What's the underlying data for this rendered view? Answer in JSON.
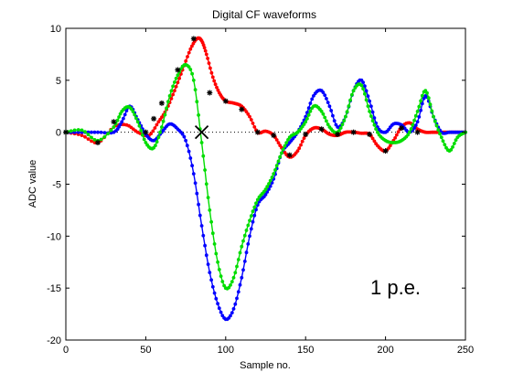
{
  "chart_data": {
    "type": "line",
    "title": "Digital CF waveforms",
    "xlabel": "Sample no.",
    "ylabel": "ADC value",
    "xlim": [
      0,
      250
    ],
    "ylim": [
      -20,
      10
    ],
    "xticks": [
      0,
      50,
      100,
      150,
      200,
      250
    ],
    "yticks": [
      -20,
      -15,
      -10,
      -5,
      0,
      5,
      10
    ],
    "xtick_labels": [
      "0",
      "50",
      "100",
      "150",
      "200",
      "250"
    ],
    "ytick_labels": [
      "-20",
      "-15",
      "-10",
      "-5",
      "0",
      "5",
      "10"
    ],
    "grid": false,
    "annotation": "1 p.e.",
    "baseline_y": 0,
    "crossing_point": [
      85,
      0
    ],
    "series": [
      {
        "color": "#ff0000",
        "marker": "dot-line",
        "x": [
          0,
          10,
          20,
          30,
          38,
          45,
          52,
          58,
          63,
          68,
          73,
          78,
          82,
          85,
          88,
          92,
          96,
          100,
          105,
          110,
          115,
          120,
          125,
          130,
          135,
          140,
          145,
          150,
          155,
          160,
          165,
          170,
          175,
          180,
          185,
          190,
          195,
          200,
          205,
          210,
          215,
          220,
          225,
          230,
          235,
          240,
          245,
          250
        ],
        "y": [
          0,
          -0.3,
          -1,
          0.5,
          0.7,
          0,
          -0.3,
          1,
          2.2,
          4,
          6,
          8,
          9,
          8.8,
          7.5,
          5.3,
          3.8,
          3,
          2.8,
          2.5,
          1.5,
          0,
          0.1,
          -0.3,
          -1.5,
          -2.4,
          -1.8,
          -0.3,
          0.4,
          0.3,
          -0.2,
          -0.3,
          0,
          0,
          -0.1,
          -0.2,
          -1.3,
          -1.8,
          -0.8,
          0.5,
          0.9,
          0.3,
          0,
          0,
          0,
          0,
          0,
          0
        ]
      },
      {
        "color": "#0000ff",
        "marker": "dot-line",
        "x": [
          0,
          10,
          20,
          30,
          35,
          40,
          45,
          50,
          55,
          60,
          65,
          70,
          75,
          80,
          85,
          90,
          95,
          100,
          105,
          110,
          115,
          120,
          125,
          130,
          135,
          140,
          145,
          150,
          155,
          160,
          165,
          170,
          175,
          180,
          185,
          190,
          195,
          200,
          205,
          210,
          215,
          220,
          225,
          230,
          235,
          240,
          245,
          250
        ],
        "y": [
          0,
          0,
          0,
          0,
          1,
          2.5,
          1.2,
          -0.2,
          -0.8,
          0,
          0.8,
          0.3,
          -0.8,
          -4,
          -9,
          -13.5,
          -16.5,
          -18,
          -17,
          -14,
          -10,
          -7,
          -6,
          -4.5,
          -2,
          -1,
          0,
          1.5,
          3.5,
          4,
          2.5,
          0.5,
          1.5,
          4,
          5,
          3,
          0.5,
          0,
          0.8,
          0.7,
          0,
          1,
          3.5,
          1.5,
          0,
          0,
          0,
          0
        ]
      },
      {
        "color": "#00dd00",
        "marker": "dot-line",
        "x": [
          0,
          10,
          20,
          30,
          35,
          40,
          45,
          50,
          55,
          60,
          65,
          70,
          75,
          80,
          85,
          90,
          95,
          100,
          105,
          110,
          115,
          120,
          125,
          130,
          135,
          140,
          145,
          150,
          155,
          160,
          165,
          170,
          175,
          180,
          185,
          190,
          195,
          200,
          205,
          210,
          215,
          220,
          225,
          230,
          235,
          240,
          245,
          250
        ],
        "y": [
          0,
          0.2,
          -0.8,
          0.5,
          2,
          2.4,
          1,
          -1,
          -1.5,
          0.5,
          3.5,
          5.5,
          6.5,
          5,
          -1,
          -7.5,
          -12.5,
          -15,
          -14,
          -11,
          -8.5,
          -6.5,
          -5.5,
          -4,
          -2,
          -0.5,
          0,
          1,
          2.5,
          2,
          0.5,
          0,
          1.5,
          4,
          4.5,
          2,
          0,
          -0.8,
          -1,
          -0.8,
          0,
          2,
          4,
          1.5,
          -0.5,
          -1.8,
          -0.5,
          0
        ]
      }
    ],
    "black_markers": {
      "color": "#000000",
      "x": [
        0,
        20,
        30,
        50,
        55,
        60,
        70,
        80,
        90,
        100,
        110,
        120,
        130,
        140,
        150,
        160,
        170,
        180,
        190,
        200,
        210,
        220
      ],
      "y": [
        0,
        -1,
        1,
        0,
        1.3,
        2.8,
        6,
        9,
        3.8,
        3,
        2.2,
        0,
        -0.3,
        -2.2,
        -0.2,
        0.3,
        -0.2,
        0,
        -0.2,
        -1.8,
        0.4,
        0
      ]
    }
  }
}
